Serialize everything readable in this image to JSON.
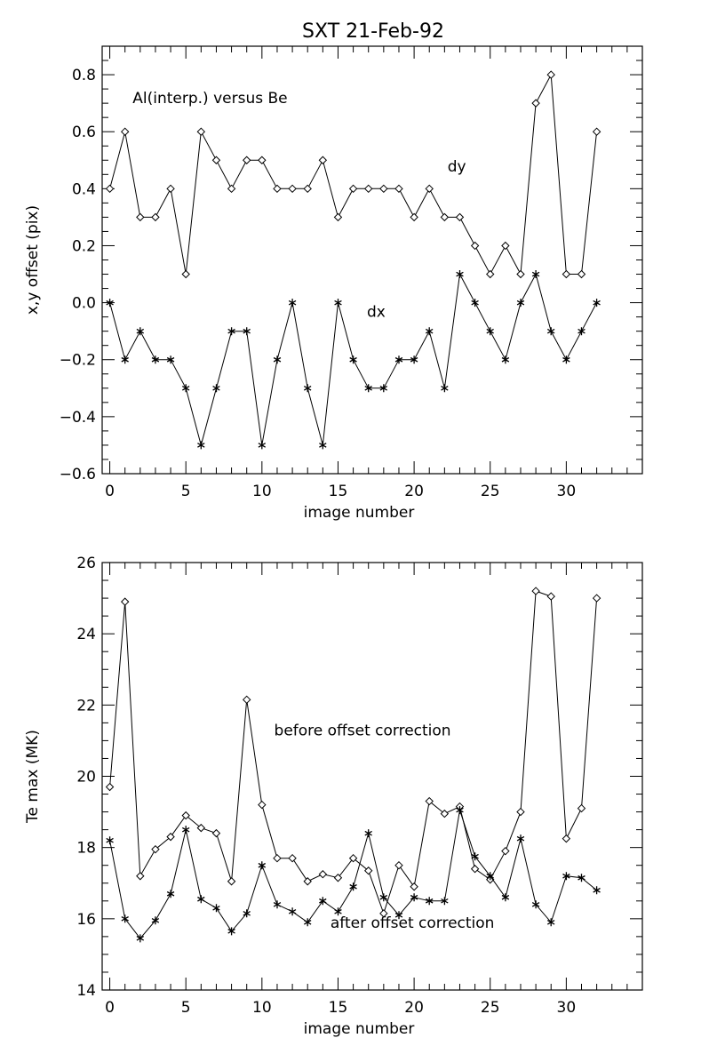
{
  "figure": {
    "title": "SXT  21-Feb-92"
  },
  "chart_data": [
    {
      "type": "line",
      "xlabel": "image number",
      "ylabel": "x,y offset (pix)",
      "xlim": [
        -0.5,
        35
      ],
      "ylim": [
        -0.6,
        0.9
      ],
      "xticks": [
        0,
        5,
        10,
        15,
        20,
        25,
        30
      ],
      "yticks": [
        -0.6,
        -0.4,
        -0.2,
        0.0,
        0.2,
        0.4,
        0.6,
        0.8
      ],
      "ytick_format": "fixed1",
      "grid": false,
      "x": [
        0,
        1,
        2,
        3,
        4,
        5,
        6,
        7,
        8,
        9,
        10,
        11,
        12,
        13,
        14,
        15,
        16,
        17,
        18,
        19,
        20,
        21,
        22,
        23,
        24,
        25,
        26,
        27,
        28,
        29,
        30,
        31,
        32
      ],
      "series": [
        {
          "name": "dy",
          "marker": "diamond",
          "values": [
            0.4,
            0.6,
            0.3,
            0.3,
            0.4,
            0.1,
            0.6,
            0.5,
            0.4,
            0.5,
            0.5,
            0.4,
            0.4,
            0.4,
            0.5,
            0.3,
            0.4,
            0.4,
            0.4,
            0.4,
            0.3,
            0.4,
            0.3,
            0.3,
            0.2,
            0.1,
            0.2,
            0.1,
            0.7,
            0.8,
            0.1,
            0.1,
            0.6
          ]
        },
        {
          "name": "dx",
          "marker": "asterisk",
          "values": [
            0.0,
            -0.2,
            -0.1,
            -0.2,
            -0.2,
            -0.3,
            -0.5,
            -0.3,
            -0.1,
            -0.1,
            -0.5,
            -0.2,
            0.0,
            -0.3,
            -0.5,
            0.0,
            -0.2,
            -0.3,
            -0.3,
            -0.2,
            -0.2,
            -0.1,
            -0.3,
            0.1,
            0.0,
            -0.1,
            -0.2,
            0.0,
            0.1,
            -0.1,
            -0.2,
            -0.1,
            0.0
          ]
        }
      ],
      "annotations": [
        {
          "text": "Al(interp.) versus Be",
          "x": 1.5,
          "y": 0.7
        },
        {
          "text": "dy",
          "x": 22.2,
          "y": 0.46
        },
        {
          "text": "dx",
          "x": 16.9,
          "y": -0.05
        }
      ]
    },
    {
      "type": "line",
      "xlabel": "image number",
      "ylabel": "Te max (MK)",
      "xlim": [
        -0.5,
        35
      ],
      "ylim": [
        14,
        26
      ],
      "xticks": [
        0,
        5,
        10,
        15,
        20,
        25,
        30
      ],
      "yticks": [
        14,
        16,
        18,
        20,
        22,
        24,
        26
      ],
      "ytick_format": "int",
      "grid": false,
      "x": [
        0,
        1,
        2,
        3,
        4,
        5,
        6,
        7,
        8,
        9,
        10,
        11,
        12,
        13,
        14,
        15,
        16,
        17,
        18,
        19,
        20,
        21,
        22,
        23,
        24,
        25,
        26,
        27,
        28,
        29,
        30,
        31,
        32
      ],
      "series": [
        {
          "name": "before offset correction",
          "marker": "diamond",
          "values": [
            19.7,
            24.9,
            17.2,
            17.95,
            18.3,
            18.9,
            18.55,
            18.4,
            17.05,
            22.15,
            19.2,
            17.7,
            17.7,
            17.05,
            17.25,
            17.15,
            17.7,
            17.35,
            16.15,
            17.5,
            16.9,
            19.3,
            18.95,
            19.15,
            17.4,
            17.1,
            17.9,
            19.0,
            25.2,
            25.05,
            18.25,
            19.1,
            25.0
          ]
        },
        {
          "name": "after offset correction",
          "marker": "asterisk",
          "values": [
            18.2,
            16.0,
            15.45,
            15.95,
            16.7,
            18.5,
            16.55,
            16.3,
            15.65,
            16.15,
            17.5,
            16.4,
            16.2,
            15.9,
            16.5,
            16.2,
            16.9,
            18.4,
            16.6,
            16.1,
            16.6,
            16.5,
            16.5,
            19.05,
            17.75,
            17.2,
            16.6,
            18.25,
            16.4,
            15.9,
            17.2,
            17.15,
            16.8
          ]
        }
      ],
      "annotations": [
        {
          "text": "before offset correction",
          "x": 10.8,
          "y": 21.15
        },
        {
          "text": "after offset correction",
          "x": 14.5,
          "y": 15.75
        }
      ]
    }
  ]
}
